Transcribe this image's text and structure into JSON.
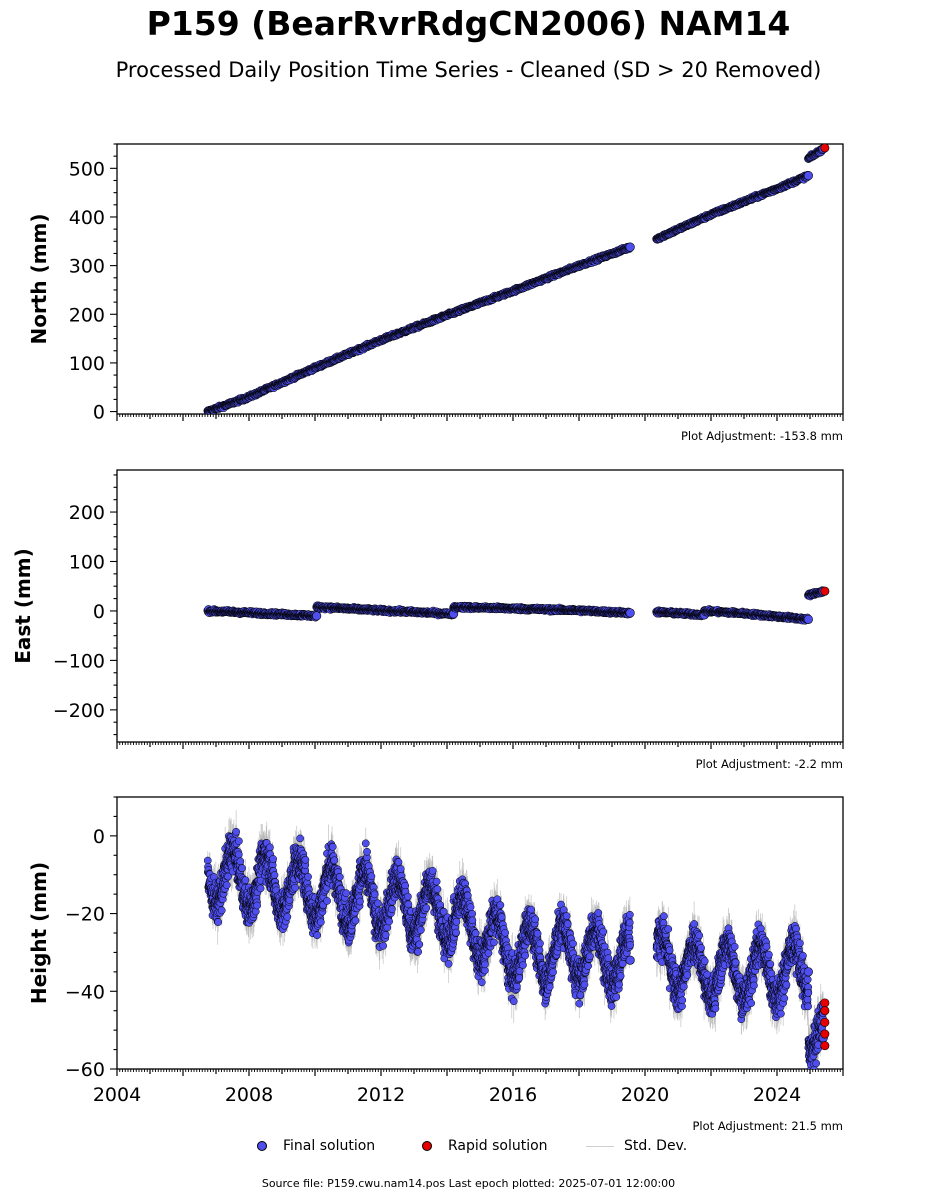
{
  "header": {
    "title": "P159 (BearRvrRdgCN2006) NAM14",
    "subtitle": "Processed Daily Position Time Series - Cleaned (SD > 20 Removed)"
  },
  "legend": {
    "final": "Final solution",
    "rapid": "Rapid solution",
    "std": "Std. Dev."
  },
  "footer": {
    "source": "Source file: P159.cwu.nam14.pos  Last epoch plotted: 2025-07-01 12:00:00"
  },
  "colors": {
    "final": "#4f4ff0",
    "rapid": "#e60000",
    "std": "#b4b4b4"
  },
  "chart_data": [
    {
      "type": "scatter",
      "ylabel": "North (mm)",
      "adjustment": "Plot Adjustment: -153.8 mm",
      "xlim": [
        2004,
        2026
      ],
      "ylim": [
        -5,
        550
      ],
      "yticks": [
        0,
        100,
        200,
        300,
        400,
        500
      ],
      "ytick_labels": [
        "0",
        "100",
        "200",
        "300",
        "400",
        "500"
      ],
      "series": [
        {
          "name": "Final solution",
          "segments": [
            {
              "x": [
                2006.75,
                2008,
                2010,
                2012,
                2014,
                2016,
                2018,
                2019.55
              ],
              "y": [
                0,
                30,
                90,
                147,
                198,
                248,
                300,
                338
              ]
            },
            {
              "x": [
                2020.35,
                2022,
                2024,
                2024.95
              ],
              "y": [
                355,
                405,
                458,
                485
              ]
            },
            {
              "x": [
                2024.95,
                2025.4
              ],
              "y": [
                520,
                540
              ]
            }
          ]
        },
        {
          "name": "Rapid solution",
          "x": [
            2025.45
          ],
          "y": [
            542
          ]
        }
      ],
      "grid": false
    },
    {
      "type": "scatter",
      "ylabel": "East (mm)",
      "adjustment": "Plot Adjustment: -2.2 mm",
      "xlim": [
        2004,
        2026
      ],
      "ylim": [
        -265,
        285
      ],
      "yticks": [
        -200,
        -100,
        0,
        100,
        200
      ],
      "ytick_labels": [
        "−200",
        "−100",
        "0",
        "100",
        "200"
      ],
      "series": [
        {
          "name": "Final solution",
          "segments": [
            {
              "x": [
                2006.75,
                2007.5,
                2008.5,
                2010.05
              ],
              "y": [
                0,
                -2,
                -5,
                -10
              ]
            },
            {
              "x": [
                2010.05,
                2012,
                2014.2
              ],
              "y": [
                8,
                1,
                -6
              ]
            },
            {
              "x": [
                2014.2,
                2016,
                2018,
                2019.55
              ],
              "y": [
                8,
                5,
                1,
                -4
              ]
            },
            {
              "x": [
                2020.35,
                2021.8
              ],
              "y": [
                -2,
                -8
              ]
            },
            {
              "x": [
                2021.8,
                2023,
                2024.95
              ],
              "y": [
                0,
                -5,
                -17
              ]
            },
            {
              "x": [
                2024.95,
                2025.4
              ],
              "y": [
                32,
                40
              ]
            }
          ]
        },
        {
          "name": "Rapid solution",
          "x": [
            2025.45
          ],
          "y": [
            40
          ]
        }
      ],
      "grid": false
    },
    {
      "type": "scatter",
      "ylabel": "Height (mm)",
      "adjustment": "Plot Adjustment: 21.5 mm",
      "xlim": [
        2004,
        2026
      ],
      "ylim": [
        -60,
        10
      ],
      "yticks": [
        -60,
        -40,
        -20,
        0
      ],
      "ytick_labels": [
        "−60",
        "−40",
        "−20",
        "0"
      ],
      "xticks": [
        2004,
        2008,
        2012,
        2016,
        2020,
        2024
      ],
      "xtick_labels": [
        "2004",
        "2008",
        "2012",
        "2016",
        "2020",
        "2024"
      ],
      "series": [
        {
          "name": "Final solution",
          "segments": [
            {
              "x": [
                2006.75,
                2010,
                2014,
                2016,
                2018,
                2019.55
              ],
              "y": [
                -10,
                -14,
                -20,
                -30,
                -30,
                -32
              ]
            },
            {
              "x": [
                2020.35,
                2022,
                2024,
                2024.95
              ],
              "y": [
                -32,
                -35,
                -35,
                -35
              ]
            },
            {
              "x": [
                2024.95,
                2025.4
              ],
              "y": [
                -48,
                -52
              ]
            }
          ],
          "seasonal_amplitude_mm": 7,
          "noise_mm": 3.5
        },
        {
          "name": "Rapid solution",
          "x": [
            2025.45,
            2025.45,
            2025.45,
            2025.45,
            2025.45
          ],
          "y": [
            -43,
            -45,
            -48,
            -51,
            -54
          ]
        }
      ],
      "grid": false
    }
  ]
}
